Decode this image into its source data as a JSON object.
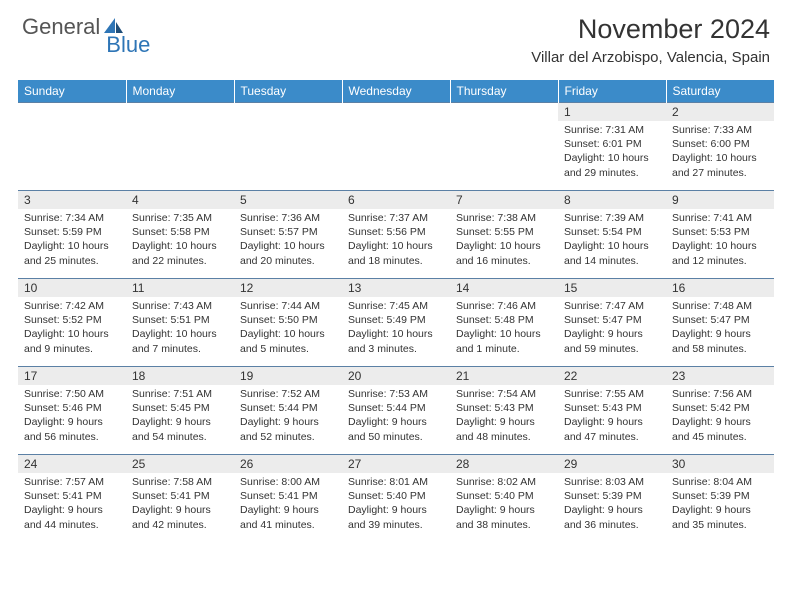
{
  "brand": {
    "part1": "General",
    "part2": "Blue"
  },
  "title": "November 2024",
  "location": "Villar del Arzobispo, Valencia, Spain",
  "colors": {
    "header_bg": "#3b8bc9",
    "daynum_bg": "#ececec",
    "rule": "#5b80a5",
    "brand_blue": "#2e75b6"
  },
  "weekdays": [
    "Sunday",
    "Monday",
    "Tuesday",
    "Wednesday",
    "Thursday",
    "Friday",
    "Saturday"
  ],
  "weeks": [
    [
      {
        "n": "",
        "sr": "",
        "ss": "",
        "dl": ""
      },
      {
        "n": "",
        "sr": "",
        "ss": "",
        "dl": ""
      },
      {
        "n": "",
        "sr": "",
        "ss": "",
        "dl": ""
      },
      {
        "n": "",
        "sr": "",
        "ss": "",
        "dl": ""
      },
      {
        "n": "",
        "sr": "",
        "ss": "",
        "dl": ""
      },
      {
        "n": "1",
        "sr": "Sunrise: 7:31 AM",
        "ss": "Sunset: 6:01 PM",
        "dl": "Daylight: 10 hours and 29 minutes."
      },
      {
        "n": "2",
        "sr": "Sunrise: 7:33 AM",
        "ss": "Sunset: 6:00 PM",
        "dl": "Daylight: 10 hours and 27 minutes."
      }
    ],
    [
      {
        "n": "3",
        "sr": "Sunrise: 7:34 AM",
        "ss": "Sunset: 5:59 PM",
        "dl": "Daylight: 10 hours and 25 minutes."
      },
      {
        "n": "4",
        "sr": "Sunrise: 7:35 AM",
        "ss": "Sunset: 5:58 PM",
        "dl": "Daylight: 10 hours and 22 minutes."
      },
      {
        "n": "5",
        "sr": "Sunrise: 7:36 AM",
        "ss": "Sunset: 5:57 PM",
        "dl": "Daylight: 10 hours and 20 minutes."
      },
      {
        "n": "6",
        "sr": "Sunrise: 7:37 AM",
        "ss": "Sunset: 5:56 PM",
        "dl": "Daylight: 10 hours and 18 minutes."
      },
      {
        "n": "7",
        "sr": "Sunrise: 7:38 AM",
        "ss": "Sunset: 5:55 PM",
        "dl": "Daylight: 10 hours and 16 minutes."
      },
      {
        "n": "8",
        "sr": "Sunrise: 7:39 AM",
        "ss": "Sunset: 5:54 PM",
        "dl": "Daylight: 10 hours and 14 minutes."
      },
      {
        "n": "9",
        "sr": "Sunrise: 7:41 AM",
        "ss": "Sunset: 5:53 PM",
        "dl": "Daylight: 10 hours and 12 minutes."
      }
    ],
    [
      {
        "n": "10",
        "sr": "Sunrise: 7:42 AM",
        "ss": "Sunset: 5:52 PM",
        "dl": "Daylight: 10 hours and 9 minutes."
      },
      {
        "n": "11",
        "sr": "Sunrise: 7:43 AM",
        "ss": "Sunset: 5:51 PM",
        "dl": "Daylight: 10 hours and 7 minutes."
      },
      {
        "n": "12",
        "sr": "Sunrise: 7:44 AM",
        "ss": "Sunset: 5:50 PM",
        "dl": "Daylight: 10 hours and 5 minutes."
      },
      {
        "n": "13",
        "sr": "Sunrise: 7:45 AM",
        "ss": "Sunset: 5:49 PM",
        "dl": "Daylight: 10 hours and 3 minutes."
      },
      {
        "n": "14",
        "sr": "Sunrise: 7:46 AM",
        "ss": "Sunset: 5:48 PM",
        "dl": "Daylight: 10 hours and 1 minute."
      },
      {
        "n": "15",
        "sr": "Sunrise: 7:47 AM",
        "ss": "Sunset: 5:47 PM",
        "dl": "Daylight: 9 hours and 59 minutes."
      },
      {
        "n": "16",
        "sr": "Sunrise: 7:48 AM",
        "ss": "Sunset: 5:47 PM",
        "dl": "Daylight: 9 hours and 58 minutes."
      }
    ],
    [
      {
        "n": "17",
        "sr": "Sunrise: 7:50 AM",
        "ss": "Sunset: 5:46 PM",
        "dl": "Daylight: 9 hours and 56 minutes."
      },
      {
        "n": "18",
        "sr": "Sunrise: 7:51 AM",
        "ss": "Sunset: 5:45 PM",
        "dl": "Daylight: 9 hours and 54 minutes."
      },
      {
        "n": "19",
        "sr": "Sunrise: 7:52 AM",
        "ss": "Sunset: 5:44 PM",
        "dl": "Daylight: 9 hours and 52 minutes."
      },
      {
        "n": "20",
        "sr": "Sunrise: 7:53 AM",
        "ss": "Sunset: 5:44 PM",
        "dl": "Daylight: 9 hours and 50 minutes."
      },
      {
        "n": "21",
        "sr": "Sunrise: 7:54 AM",
        "ss": "Sunset: 5:43 PM",
        "dl": "Daylight: 9 hours and 48 minutes."
      },
      {
        "n": "22",
        "sr": "Sunrise: 7:55 AM",
        "ss": "Sunset: 5:43 PM",
        "dl": "Daylight: 9 hours and 47 minutes."
      },
      {
        "n": "23",
        "sr": "Sunrise: 7:56 AM",
        "ss": "Sunset: 5:42 PM",
        "dl": "Daylight: 9 hours and 45 minutes."
      }
    ],
    [
      {
        "n": "24",
        "sr": "Sunrise: 7:57 AM",
        "ss": "Sunset: 5:41 PM",
        "dl": "Daylight: 9 hours and 44 minutes."
      },
      {
        "n": "25",
        "sr": "Sunrise: 7:58 AM",
        "ss": "Sunset: 5:41 PM",
        "dl": "Daylight: 9 hours and 42 minutes."
      },
      {
        "n": "26",
        "sr": "Sunrise: 8:00 AM",
        "ss": "Sunset: 5:41 PM",
        "dl": "Daylight: 9 hours and 41 minutes."
      },
      {
        "n": "27",
        "sr": "Sunrise: 8:01 AM",
        "ss": "Sunset: 5:40 PM",
        "dl": "Daylight: 9 hours and 39 minutes."
      },
      {
        "n": "28",
        "sr": "Sunrise: 8:02 AM",
        "ss": "Sunset: 5:40 PM",
        "dl": "Daylight: 9 hours and 38 minutes."
      },
      {
        "n": "29",
        "sr": "Sunrise: 8:03 AM",
        "ss": "Sunset: 5:39 PM",
        "dl": "Daylight: 9 hours and 36 minutes."
      },
      {
        "n": "30",
        "sr": "Sunrise: 8:04 AM",
        "ss": "Sunset: 5:39 PM",
        "dl": "Daylight: 9 hours and 35 minutes."
      }
    ]
  ]
}
